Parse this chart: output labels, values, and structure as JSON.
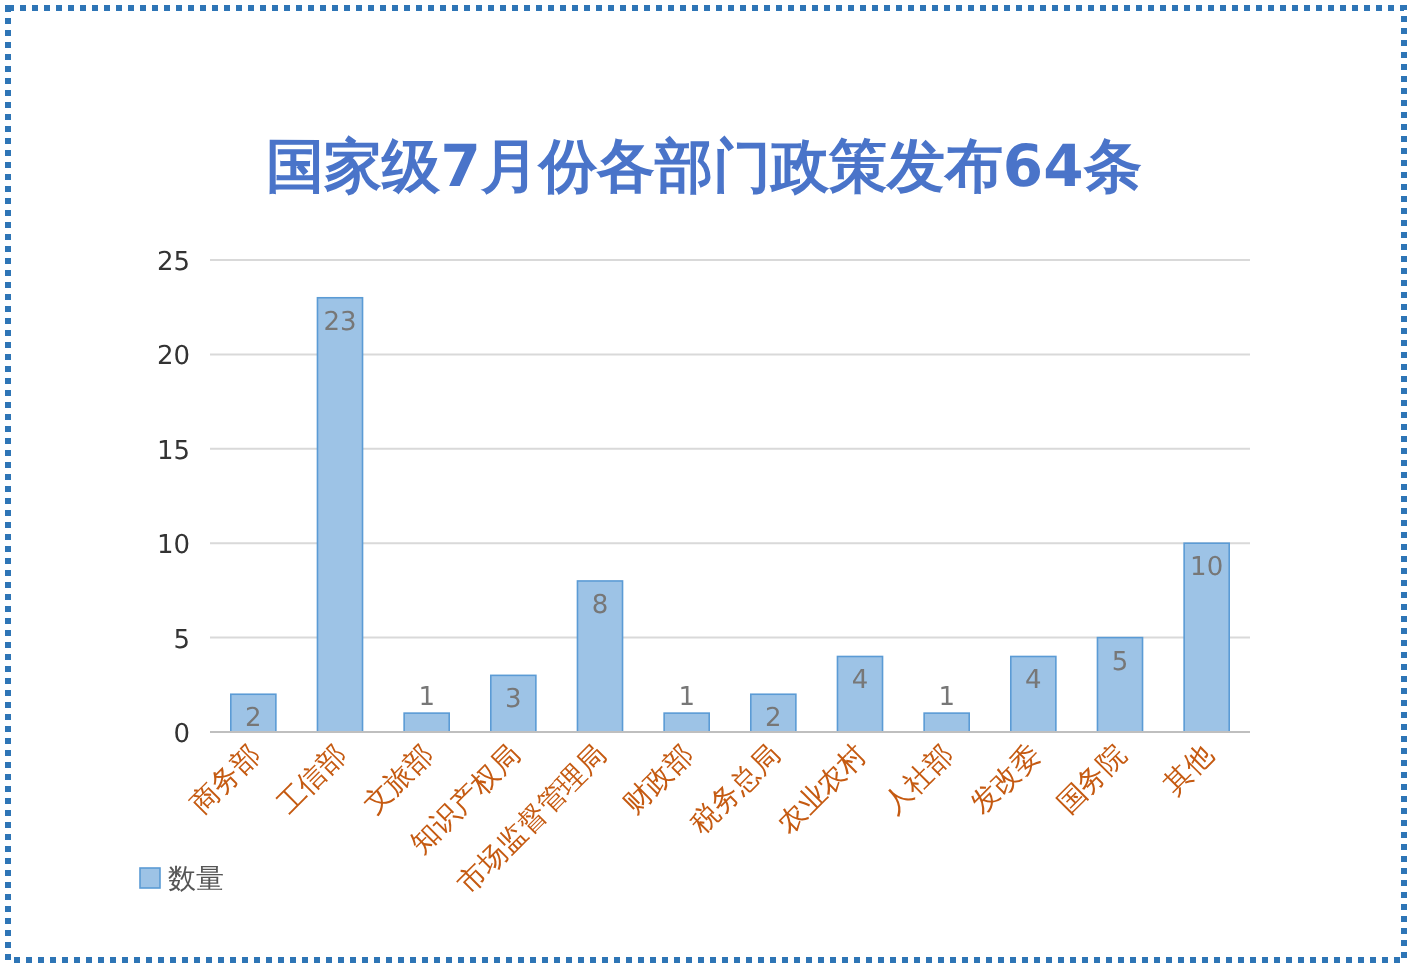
{
  "chart_data": {
    "type": "bar",
    "title": "国家级7月份各部门政策发布64条",
    "categories": [
      "商务部",
      "工信部",
      "文旅部",
      "知识产权局",
      "市场监督管理局",
      "财政部",
      "税务总局",
      "农业农村",
      "人社部",
      "发改委",
      "国务院",
      "其他"
    ],
    "series": [
      {
        "name": "数量",
        "color": "#9dc3e6",
        "values": [
          2,
          23,
          1,
          3,
          8,
          1,
          2,
          4,
          1,
          4,
          5,
          10
        ]
      }
    ],
    "ylim": [
      0,
      25
    ],
    "yticks": [
      0,
      5,
      10,
      15,
      20,
      25
    ],
    "grid": "y",
    "legend": "bottom left",
    "data_labels": true
  }
}
